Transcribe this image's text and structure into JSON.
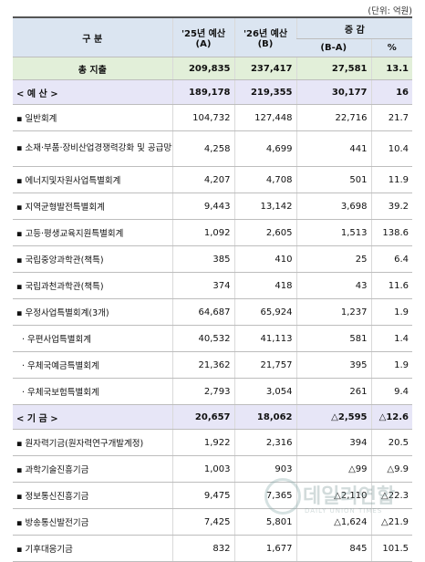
{
  "unit_note": "(단위: 억원)",
  "header": {
    "category": "구    분",
    "col_a_line1": "'25년 예산",
    "col_a_line2": "(A)",
    "col_b_line1": "'26년 예산",
    "col_b_line2": "(B)",
    "change": "증 감",
    "change_diff": "(B-A)",
    "change_pct": "%"
  },
  "total": {
    "label": "총 지출",
    "a": "209,835",
    "b": "237,417",
    "diff": "27,581",
    "pct": "13.1"
  },
  "budget_section": {
    "label": "< 예 산 >",
    "a": "189,178",
    "b": "219,355",
    "diff": "30,177",
    "pct": "16"
  },
  "budget_items": [
    {
      "label": "▪ 일반회계",
      "a": "104,732",
      "b": "127,448",
      "diff": "22,716",
      "pct": "21.7"
    },
    {
      "label": "▪ 소재·부품·장비산업경쟁력강화 및 공급망안정화특별회계",
      "a": "4,258",
      "b": "4,699",
      "diff": "441",
      "pct": "10.4"
    },
    {
      "label": "▪ 에너지및자원사업특별회계",
      "a": "4,207",
      "b": "4,708",
      "diff": "501",
      "pct": "11.9"
    },
    {
      "label": "▪ 지역균형발전특별회계",
      "a": "9,443",
      "b": "13,142",
      "diff": "3,698",
      "pct": "39.2"
    },
    {
      "label": "▪ 고등·평생교육지원특별회계",
      "a": "1,092",
      "b": "2,605",
      "diff": "1,513",
      "pct": "138.6"
    },
    {
      "label": "▪ 국립중앙과학관(책특)",
      "a": "385",
      "b": "410",
      "diff": "25",
      "pct": "6.4"
    },
    {
      "label": "▪ 국립과천과학관(책특)",
      "a": "374",
      "b": "418",
      "diff": "43",
      "pct": "11.6"
    },
    {
      "label": "▪ 우정사업특별회계(3개)",
      "a": "64,687",
      "b": "65,924",
      "diff": "1,237",
      "pct": "1.9"
    },
    {
      "label": "· 우편사업특별회계",
      "a": "40,532",
      "b": "41,113",
      "diff": "581",
      "pct": "1.4"
    },
    {
      "label": "· 우체국예금특별회계",
      "a": "21,362",
      "b": "21,757",
      "diff": "395",
      "pct": "1.9"
    },
    {
      "label": "· 우체국보험특별회계",
      "a": "2,793",
      "b": "3,054",
      "diff": "261",
      "pct": "9.4"
    }
  ],
  "fund_section": {
    "label": "< 기 금 >",
    "a": "20,657",
    "b": "18,062",
    "diff": "△2,595",
    "pct": "△12.6"
  },
  "fund_items": [
    {
      "label": "▪ 원자력기금(원자력연구개발계정)",
      "a": "1,922",
      "b": "2,316",
      "diff": "394",
      "pct": "20.5"
    },
    {
      "label": "▪ 과학기술진흥기금",
      "a": "1,003",
      "b": "903",
      "diff": "△99",
      "pct": "△9.9"
    },
    {
      "label": "▪ 정보통신진흥기금",
      "a": "9,475",
      "b": "7,365",
      "diff": "△2,110",
      "pct": "△22.3"
    },
    {
      "label": "▪ 방송통신발전기금",
      "a": "7,425",
      "b": "5,801",
      "diff": "△1,624",
      "pct": "△21.9"
    },
    {
      "label": "▪ 기후대응기금",
      "a": "832",
      "b": "1,677",
      "diff": "845",
      "pct": "101.5"
    }
  ],
  "watermark": {
    "text": "데일리연합",
    "sub": "DAILY UNION TIMES"
  }
}
